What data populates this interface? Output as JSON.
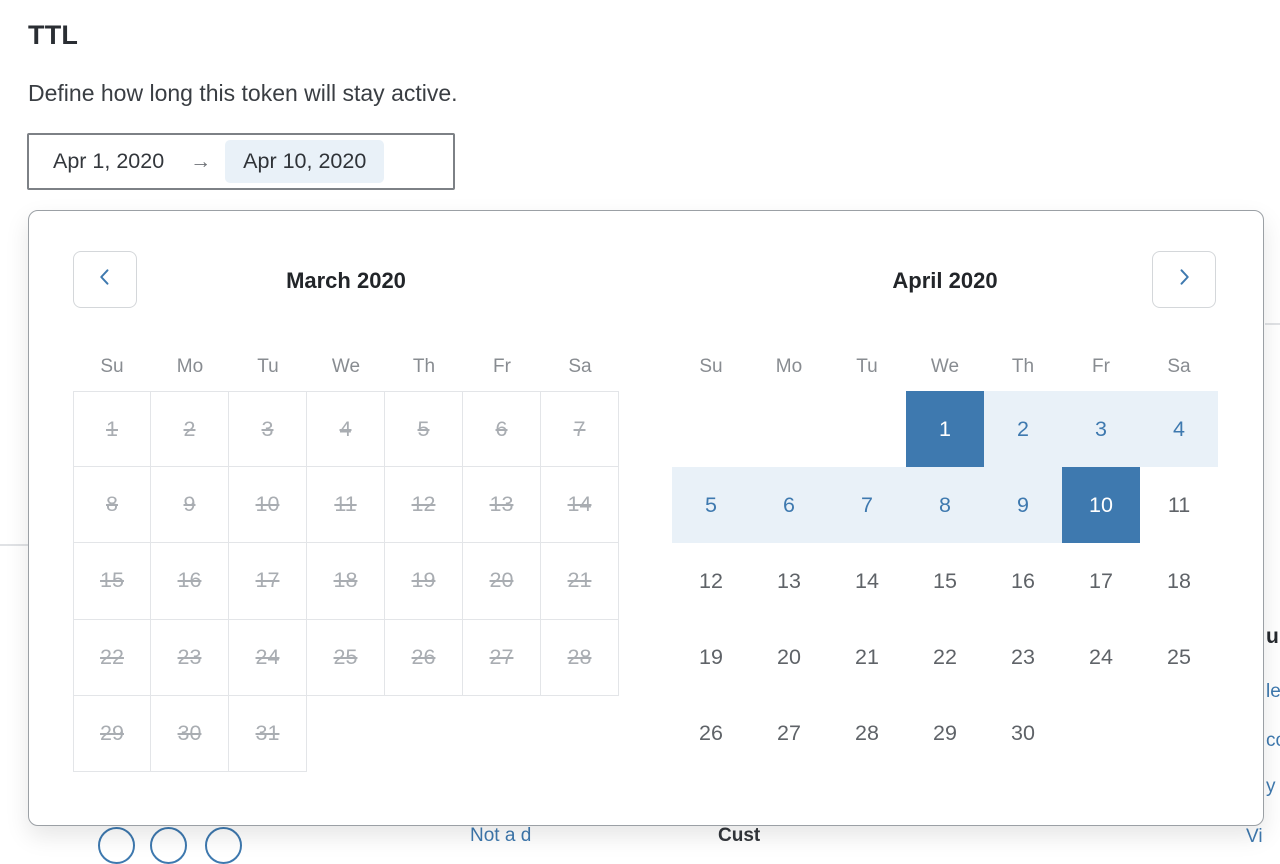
{
  "header": {
    "title": "TTL",
    "description": "Define how long this token will stay active."
  },
  "date_input": {
    "start_value": "Apr 1, 2020",
    "separator_glyph": "→",
    "end_value": "Apr 10, 2020"
  },
  "calendar": {
    "weekdays": [
      "Su",
      "Mo",
      "Tu",
      "We",
      "Th",
      "Fr",
      "Sa"
    ],
    "nav": {
      "prev_icon": "chevron-left",
      "next_icon": "chevron-right"
    },
    "months": [
      {
        "title": "March 2020",
        "key": "march",
        "days_in_month": 31,
        "first_day_column": 0,
        "all_disabled": true,
        "bordered_cells": true
      },
      {
        "title": "April 2020",
        "key": "april",
        "days_in_month": 30,
        "first_day_column": 3,
        "selected_range_start": 1,
        "selected_range_end": 10
      }
    ]
  },
  "colors": {
    "accent_blue": "#3e79af",
    "selected_day_bg": "#3e79af",
    "selected_day_text": "#ffffff",
    "range_day_bg": "#e9f1f8",
    "range_day_text": "#3e79af",
    "disabled_day_text": "#a9adb2",
    "day_text": "#5f6368",
    "end_value_pill_bg": "#e9f1f8"
  },
  "background_fragments": {
    "radio_circle_count": 3,
    "bottom_left_link": "Not a d",
    "bottom_mid_label": "Cust",
    "bottom_right_link": "Vi",
    "right_heading_fragment": "u",
    "right_links": [
      "le",
      "co",
      "y"
    ]
  }
}
